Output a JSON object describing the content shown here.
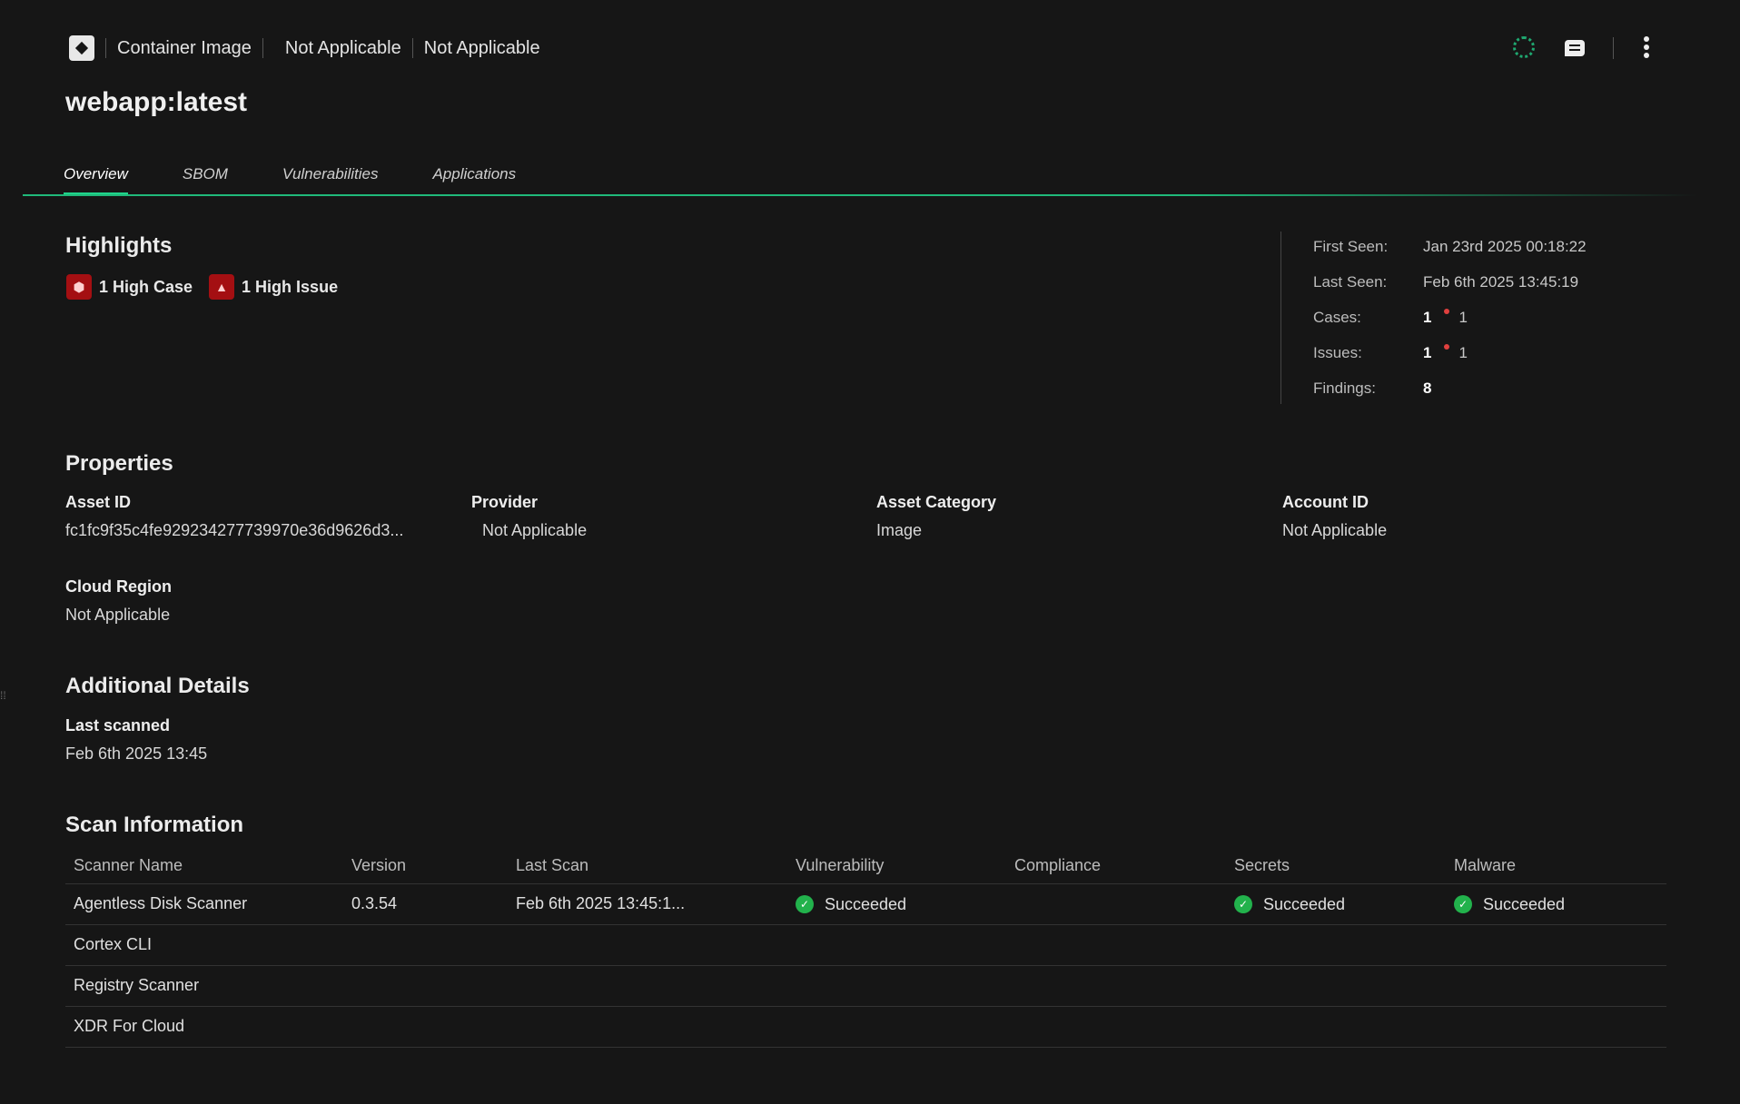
{
  "header": {
    "asset_type": "Container Image",
    "crumb1": "Not Applicable",
    "crumb2": "Not Applicable",
    "title": "webapp:latest"
  },
  "tabs": [
    {
      "label": "Overview",
      "active": true
    },
    {
      "label": "SBOM"
    },
    {
      "label": "Vulnerabilities"
    },
    {
      "label": "Applications"
    }
  ],
  "highlights": {
    "heading": "Highlights",
    "case_badge": "1 High Case",
    "issue_badge": "1 High Issue"
  },
  "summary": {
    "first_seen_label": "First Seen:",
    "first_seen": "Jan 23rd 2025 00:18:22",
    "last_seen_label": "Last Seen:",
    "last_seen": "Feb 6th 2025 13:45:19",
    "cases_label": "Cases:",
    "cases_total": "1",
    "cases_high": "1",
    "issues_label": "Issues:",
    "issues_total": "1",
    "issues_high": "1",
    "findings_label": "Findings:",
    "findings": "8"
  },
  "properties": {
    "heading": "Properties",
    "items": [
      {
        "label": "Asset ID",
        "value": "fc1fc9f35c4fe929234277739970e36d9626d3..."
      },
      {
        "label": "Provider",
        "value": "Not Applicable"
      },
      {
        "label": "Asset Category",
        "value": "Image"
      },
      {
        "label": "Account ID",
        "value": "Not Applicable"
      },
      {
        "label": "Cloud Region",
        "value": "Not Applicable"
      }
    ]
  },
  "additional": {
    "heading": "Additional Details",
    "last_scanned_label": "Last scanned",
    "last_scanned": "Feb 6th 2025 13:45"
  },
  "scan": {
    "heading": "Scan Information",
    "columns": [
      "Scanner Name",
      "Version",
      "Last Scan",
      "Vulnerability",
      "Compliance",
      "Secrets",
      "Malware"
    ],
    "rows": [
      [
        "Agentless Disk Scanner",
        "0.3.54",
        "Feb 6th 2025 13:45:1...",
        "Succeeded",
        "",
        "Succeeded",
        "Succeeded"
      ],
      [
        "Cortex CLI",
        "",
        "",
        "",
        "",
        "",
        ""
      ],
      [
        "Registry Scanner",
        "",
        "",
        "",
        "",
        "",
        ""
      ],
      [
        "XDR For Cloud",
        "",
        "",
        "",
        "",
        "",
        ""
      ]
    ]
  },
  "colors": {
    "accent": "#1fd38a",
    "high": "#a40f12",
    "success": "#22b24c"
  }
}
